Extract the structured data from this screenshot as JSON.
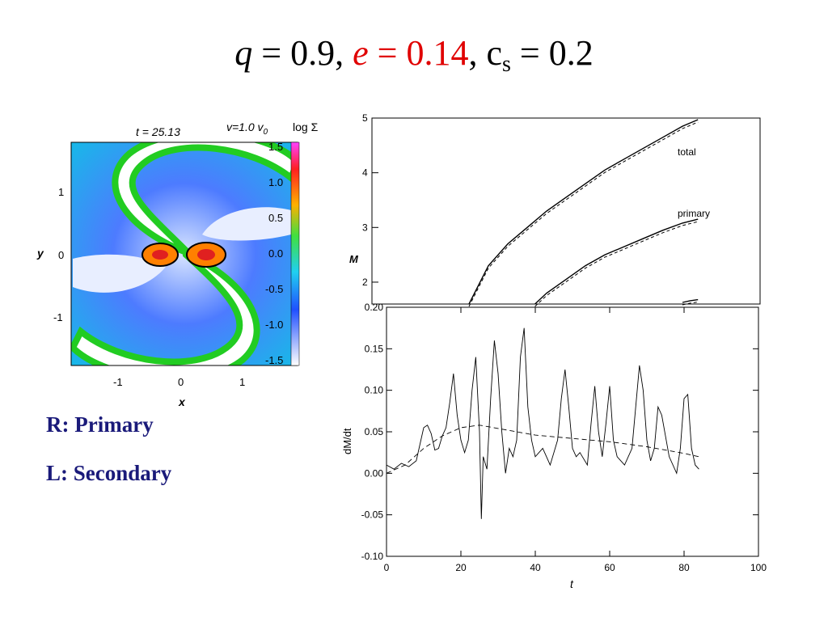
{
  "title": {
    "q_symbol": "q",
    "q_value": " = 0.9, ",
    "e_symbol": "e",
    "e_value": " = 0.14",
    "comma": ", c",
    "cs_subscript": "s",
    "cs_value": " = 0.2"
  },
  "simulation_panel": {
    "time_label": "t = 25.13",
    "velocity_label": "v=1.0 v",
    "velocity_subscript": "0",
    "colorbar_title": "log Σ",
    "colorbar_ticks": [
      "1.5",
      "1.0",
      "0.5",
      "0.0",
      "-0.5",
      "-1.0",
      "-1.5"
    ],
    "y_label": "y",
    "x_label": "x",
    "x_ticks": [
      "-1",
      "0",
      "1"
    ],
    "y_ticks": [
      "1",
      "0",
      "-1"
    ]
  },
  "captions": {
    "right": "R:  Primary",
    "left": "L:  Secondary"
  },
  "chart_data": [
    {
      "type": "line",
      "ylabel": "M",
      "yticks": [
        "5",
        "4",
        "3",
        "2"
      ],
      "ylim": [
        1.6,
        5.0
      ],
      "xlim": [
        0,
        100
      ],
      "annotations": [
        "total",
        "primary"
      ],
      "series": [
        {
          "name": "total",
          "x": [
            25,
            30,
            35,
            40,
            45,
            50,
            55,
            60,
            65,
            70,
            75,
            80,
            84
          ],
          "y": [
            1.6,
            2.3,
            2.7,
            3.0,
            3.3,
            3.55,
            3.8,
            4.05,
            4.25,
            4.45,
            4.65,
            4.85,
            4.97
          ]
        },
        {
          "name": "primary",
          "x": [
            42,
            45,
            50,
            55,
            60,
            65,
            70,
            75,
            80,
            84
          ],
          "y": [
            1.6,
            1.8,
            2.05,
            2.3,
            2.5,
            2.65,
            2.8,
            2.95,
            3.08,
            3.15
          ]
        },
        {
          "x": [
            80,
            82,
            84
          ],
          "y": [
            1.63,
            1.66,
            1.68
          ]
        }
      ]
    },
    {
      "type": "line",
      "xlabel": "t",
      "ylabel": "dM/dt",
      "xlim": [
        0,
        100
      ],
      "ylim": [
        -0.1,
        0.2
      ],
      "xticks": [
        "0",
        "20",
        "40",
        "60",
        "80",
        "100"
      ],
      "yticks": [
        "0.20",
        "0.15",
        "0.10",
        "0.05",
        "0.00",
        "-0.05",
        "-0.10"
      ],
      "series": [
        {
          "style": "solid",
          "x": [
            0,
            2,
            4,
            6,
            8,
            9,
            10,
            11,
            12,
            13,
            14,
            15,
            16,
            17,
            18,
            19,
            20,
            21,
            22,
            23,
            24,
            25,
            25.5,
            26,
            27,
            28,
            29,
            30,
            31,
            32,
            33,
            34,
            35,
            36,
            37,
            38,
            39,
            40,
            42,
            44,
            46,
            47,
            48,
            49,
            50,
            51,
            52,
            54,
            55,
            56,
            57,
            58,
            59,
            60,
            61,
            62,
            64,
            66,
            67,
            68,
            69,
            70,
            71,
            72,
            73,
            74,
            76,
            78,
            79,
            80,
            81,
            82,
            83,
            84
          ],
          "y": [
            0.01,
            0.005,
            0.012,
            0.008,
            0.015,
            0.035,
            0.055,
            0.058,
            0.048,
            0.028,
            0.03,
            0.045,
            0.055,
            0.085,
            0.12,
            0.07,
            0.04,
            0.025,
            0.04,
            0.1,
            0.14,
            0.05,
            -0.055,
            0.02,
            0.005,
            0.09,
            0.16,
            0.12,
            0.05,
            0.0,
            0.03,
            0.02,
            0.04,
            0.14,
            0.175,
            0.08,
            0.04,
            0.02,
            0.03,
            0.01,
            0.04,
            0.09,
            0.125,
            0.08,
            0.03,
            0.02,
            0.025,
            0.01,
            0.06,
            0.105,
            0.05,
            0.02,
            0.06,
            0.105,
            0.04,
            0.02,
            0.01,
            0.03,
            0.08,
            0.13,
            0.1,
            0.04,
            0.015,
            0.03,
            0.08,
            0.07,
            0.02,
            0.0,
            0.03,
            0.09,
            0.095,
            0.03,
            0.01,
            0.005
          ]
        },
        {
          "style": "dashed",
          "x": [
            0,
            5,
            10,
            15,
            20,
            25,
            30,
            35,
            40,
            45,
            50,
            55,
            60,
            65,
            70,
            75,
            80,
            84
          ],
          "y": [
            0.0,
            0.01,
            0.03,
            0.045,
            0.055,
            0.058,
            0.054,
            0.05,
            0.046,
            0.044,
            0.042,
            0.04,
            0.038,
            0.035,
            0.032,
            0.028,
            0.024,
            0.02
          ]
        }
      ]
    }
  ]
}
